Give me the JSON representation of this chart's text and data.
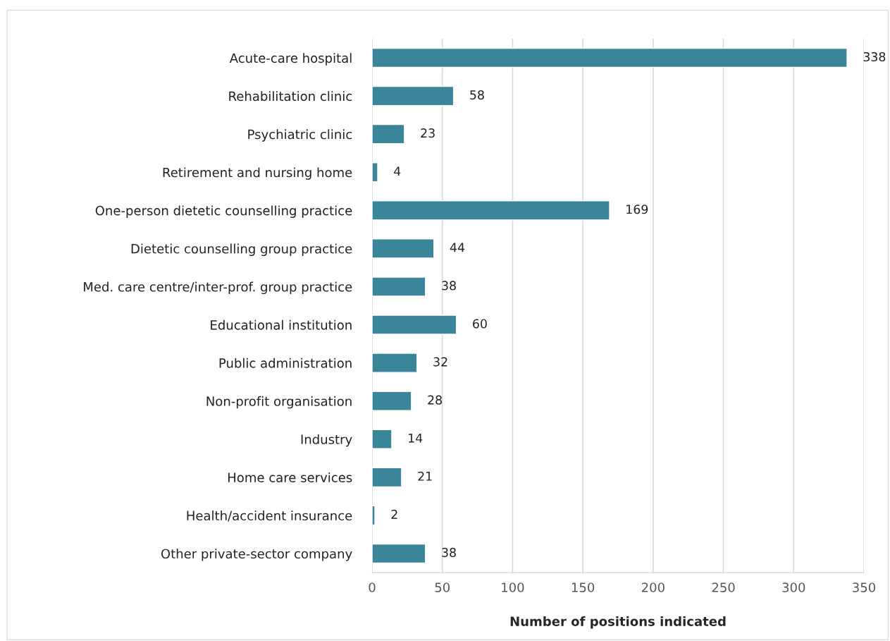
{
  "chart_data": {
    "type": "bar",
    "orientation": "horizontal",
    "xlabel": "Number of positions indicated",
    "categories": [
      "Acute-care hospital",
      "Rehabilitation clinic",
      "Psychiatric clinic",
      "Retirement and nursing home",
      "One-person dietetic counselling practice",
      "Dietetic counselling group practice",
      "Med. care centre/inter-prof. group practice",
      "Educational institution",
      "Public administration",
      "Non-profit organisation",
      "Industry",
      "Home care services",
      "Health/accident insurance",
      "Other private-sector company"
    ],
    "values": [
      338,
      58,
      23,
      4,
      169,
      44,
      38,
      60,
      32,
      28,
      14,
      21,
      2,
      38
    ],
    "color": "#3a8599",
    "xlim": [
      0,
      350
    ],
    "xticks": [
      0,
      50,
      100,
      150,
      200,
      250,
      300,
      350
    ],
    "grid": "x",
    "data_labels": true
  }
}
